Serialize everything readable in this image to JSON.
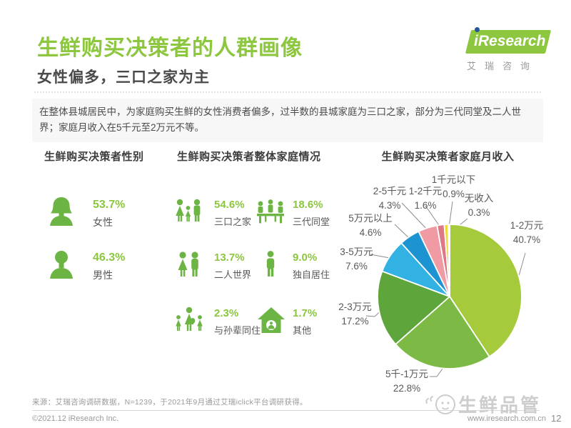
{
  "page": {
    "title": "生鲜购买决策者的人群画像",
    "subtitle": "女性偏多，三口之家为主",
    "intro": "在整体县城居民中，为家庭购买生鲜的女性消费者偏多，过半数的县城家庭为三口之家，部分为三代同堂及二人世界；家庭月收入在5千元至2万元不等。"
  },
  "logo": {
    "prefix": "i",
    "brand": "Research",
    "caption": "艾瑞咨询"
  },
  "gender_section": {
    "title": "生鲜购买决策者性别",
    "items": [
      {
        "label": "女性",
        "pct": "53.7%",
        "icon": "female"
      },
      {
        "label": "男性",
        "pct": "46.3%",
        "icon": "male"
      }
    ]
  },
  "family_section": {
    "title": "生鲜购买决策者整体家庭情况",
    "items": [
      {
        "label": "三口之家",
        "pct": "54.6%",
        "icon": "family-of-three"
      },
      {
        "label": "三代同堂",
        "pct": "18.6%",
        "icon": "three-generations"
      },
      {
        "label": "二人世界",
        "pct": "13.7%",
        "icon": "couple"
      },
      {
        "label": "独自居住",
        "pct": "9.0%",
        "icon": "single-person"
      },
      {
        "label": "与孙辈同住",
        "pct": "2.3%",
        "icon": "with-grandchildren"
      },
      {
        "label": "其他",
        "pct": "1.7%",
        "icon": "house"
      }
    ]
  },
  "chart_data": {
    "type": "pie",
    "title": "生鲜购买决策者家庭月收入",
    "start_angle_deg": -90,
    "direction": "clockwise",
    "slices": [
      {
        "label": "1-2万元",
        "value": 40.7,
        "pct_label": "40.7%",
        "color": "#a5ca3b"
      },
      {
        "label": "5千-1万元",
        "value": 22.8,
        "pct_label": "22.8%",
        "color": "#7cba45"
      },
      {
        "label": "2-3万元",
        "value": 17.2,
        "pct_label": "17.2%",
        "color": "#5ea53c"
      },
      {
        "label": "3-5万元",
        "value": 7.6,
        "pct_label": "7.6%",
        "color": "#31b2e3"
      },
      {
        "label": "5万元以上",
        "value": 4.6,
        "pct_label": "4.6%",
        "color": "#1d93d2"
      },
      {
        "label": "2-5千元",
        "value": 4.3,
        "pct_label": "4.3%",
        "color": "#f09aa3"
      },
      {
        "label": "1-2千元",
        "value": 1.6,
        "pct_label": "1.6%",
        "color": "#dd7884"
      },
      {
        "label": "1千元以下",
        "value": 0.9,
        "pct_label": "0.9%",
        "color": "#f3d83d"
      },
      {
        "label": "无收入",
        "value": 0.3,
        "pct_label": "0.3%",
        "color": "#e4e4e4"
      }
    ]
  },
  "footer": {
    "source": "来源：艾瑞咨询调研数据，N=1239，于2021年9月通过艾瑞iclick平台调研获得。",
    "copyright": "©2021.12 iResearch Inc.",
    "website": "www.iresearch.com.cn",
    "page": "12",
    "watermark": "生鲜品管"
  }
}
